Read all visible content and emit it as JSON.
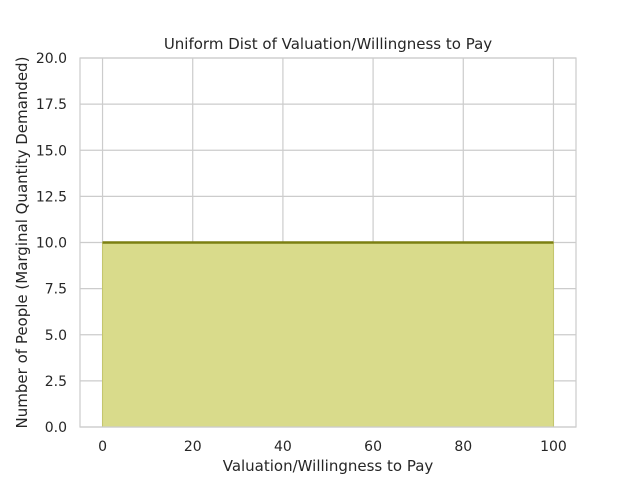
{
  "chart_data": {
    "type": "area",
    "title": "Uniform Dist of Valuation/Willingness to Pay",
    "xlabel": "Valuation/Willingness to Pay",
    "ylabel": "Number of People (Marginal Quantity Demanded)",
    "xlim": [
      -5,
      105
    ],
    "ylim": [
      0,
      20
    ],
    "x_ticks": [
      0,
      20,
      40,
      60,
      80,
      100
    ],
    "y_ticks": [
      0.0,
      2.5,
      5.0,
      7.5,
      10.0,
      12.5,
      15.0,
      17.5,
      20.0
    ],
    "y_tick_labels": [
      "0.0",
      "2.5",
      "5.0",
      "7.5",
      "10.0",
      "12.5",
      "15.0",
      "17.5",
      "20.0"
    ],
    "grid": true,
    "series": [
      {
        "x": [
          0,
          100
        ],
        "y": [
          10,
          10
        ],
        "line_color": "#7b7f12",
        "fill_color": "#d9db8b"
      }
    ]
  }
}
